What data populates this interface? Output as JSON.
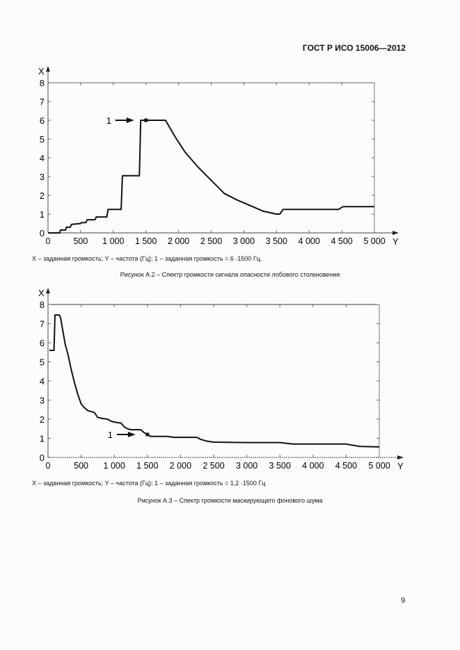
{
  "header": {
    "standard": "ГОСТ Р ИСО 15006—2012"
  },
  "figures": [
    {
      "legend": "X – заданная громкость; Y – частота (Гц); 1 – заданная громкость = 6 ·1500 Гц.",
      "caption": "Рисунок А.2 – Спектр громкости сигнала опасности лобового столкновения"
    },
    {
      "legend": "X – заданная громкость; Y – частота (Гц); 1 – заданная громкость = 1,2 ·1500 Гц",
      "caption": "Рисунок А.3 – Спектр громкости маскирующего фонового шума"
    }
  ],
  "page_number": "9",
  "chart_data": [
    {
      "type": "line",
      "title": "Рисунок А.2 – Спектр громкости сигнала опасности лобового столкновения",
      "xlabel": "Y",
      "ylabel": "X",
      "xlim": [
        0,
        5000
      ],
      "ylim": [
        0,
        8
      ],
      "xticks": [
        0,
        500,
        1000,
        1500,
        2000,
        2500,
        3000,
        3500,
        4000,
        4500,
        5000
      ],
      "xtick_labels": [
        "0",
        "500",
        "1 000",
        "1 500",
        "2 000",
        "2 500",
        "3 000",
        "3 500",
        "4 000",
        "4 500",
        "5 000"
      ],
      "yticks": [
        0,
        1,
        2,
        3,
        4,
        5,
        6,
        7,
        8
      ],
      "grid": false,
      "annotation": {
        "label": "1",
        "x": 1500,
        "y": 6
      },
      "series": [
        {
          "name": "заданная громкость",
          "x": [
            0,
            180,
            190,
            270,
            280,
            340,
            360,
            500,
            510,
            580,
            600,
            720,
            740,
            900,
            920,
            1120,
            1140,
            1400,
            1420,
            1800,
            1950,
            2100,
            2300,
            2500,
            2700,
            2900,
            3100,
            3300,
            3500,
            3550,
            3600,
            4450,
            4520,
            5000
          ],
          "y": [
            0,
            0,
            0.15,
            0.15,
            0.3,
            0.3,
            0.45,
            0.5,
            0.55,
            0.55,
            0.7,
            0.7,
            0.85,
            0.85,
            1.25,
            1.25,
            3.05,
            3.05,
            6.0,
            6.0,
            5.1,
            4.3,
            3.5,
            2.8,
            2.1,
            1.75,
            1.45,
            1.15,
            1.0,
            1.0,
            1.25,
            1.25,
            1.4,
            1.4
          ]
        }
      ]
    },
    {
      "type": "line",
      "title": "Рисунок А.3 – Спектр громкости маскирующего фонового шума",
      "xlabel": "Y",
      "ylabel": "X",
      "xlim": [
        0,
        5000
      ],
      "ylim": [
        0,
        8
      ],
      "xticks": [
        0,
        500,
        1000,
        1500,
        2000,
        2500,
        3000,
        3500,
        4000,
        4500,
        5000
      ],
      "xtick_labels": [
        "0",
        "500",
        "1 000",
        "1 500",
        "2 000",
        "2 500",
        "3 000",
        "3 500",
        "4 000",
        "4 500",
        "5 000"
      ],
      "yticks": [
        0,
        1,
        2,
        3,
        4,
        5,
        6,
        7,
        8
      ],
      "grid": false,
      "annotation": {
        "label": "1",
        "x": 1500,
        "y": 1.2
      },
      "series": [
        {
          "name": "заданная громкость",
          "x": [
            20,
            90,
            105,
            170,
            190,
            230,
            260,
            300,
            350,
            400,
            450,
            500,
            550,
            600,
            650,
            700,
            750,
            800,
            900,
            950,
            1000,
            1100,
            1150,
            1200,
            1250,
            1400,
            1450,
            1500,
            1550,
            1800,
            1900,
            2250,
            2300,
            2400,
            2500,
            3000,
            3500,
            3700,
            4500,
            4700,
            5000
          ],
          "y": [
            5.6,
            5.6,
            7.45,
            7.45,
            7.3,
            6.5,
            5.9,
            5.4,
            4.6,
            3.9,
            3.3,
            2.8,
            2.6,
            2.45,
            2.4,
            2.35,
            2.1,
            2.05,
            2.0,
            1.9,
            1.85,
            1.8,
            1.6,
            1.5,
            1.45,
            1.45,
            1.3,
            1.2,
            1.1,
            1.1,
            1.05,
            1.05,
            0.95,
            0.85,
            0.8,
            0.78,
            0.78,
            0.7,
            0.7,
            0.58,
            0.55
          ]
        }
      ]
    }
  ]
}
